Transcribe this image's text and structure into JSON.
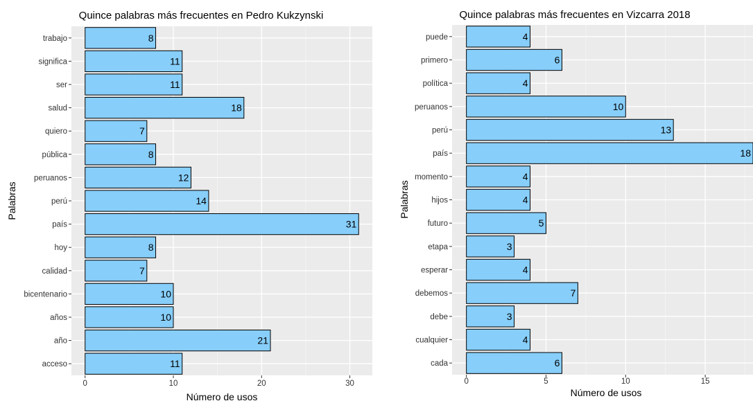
{
  "chart_data": [
    {
      "type": "bar",
      "orientation": "horizontal",
      "title": "Quince palabras más frecuentes en Pedro Kukzynski",
      "xlabel": "Número de usos",
      "ylabel": "Palabras",
      "categories": [
        "trabajo",
        "significa",
        "ser",
        "salud",
        "quiero",
        "pública",
        "peruanos",
        "perú",
        "país",
        "hoy",
        "calidad",
        "bicentenario",
        "años",
        "año",
        "acceso"
      ],
      "values": [
        8,
        11,
        11,
        18,
        7,
        8,
        12,
        14,
        31,
        8,
        7,
        10,
        10,
        21,
        11
      ],
      "xticks": [
        0,
        10,
        20,
        30
      ],
      "xlim": [
        -1.55,
        32.55
      ],
      "grid": true,
      "bar_color": "#87CEFA",
      "panel_color": "#EBEBEB"
    },
    {
      "type": "bar",
      "orientation": "horizontal",
      "title": "Quince palabras más frecuentes en Vizcarra 2018",
      "xlabel": "Número de usos",
      "ylabel": "Palabras",
      "categories": [
        "puede",
        "primero",
        "política",
        "peruanos",
        "perú",
        "país",
        "momento",
        "hijos",
        "futuro",
        "etapa",
        "esperar",
        "debemos",
        "debe",
        "cualquier",
        "cada"
      ],
      "values": [
        4,
        6,
        4,
        10,
        13,
        18,
        4,
        4,
        5,
        3,
        4,
        7,
        3,
        4,
        6
      ],
      "xticks": [
        0,
        5,
        10,
        15
      ],
      "xlim": [
        -0.9,
        18.0
      ],
      "grid": true,
      "bar_color": "#87CEFA",
      "panel_color": "#EBEBEB"
    }
  ]
}
